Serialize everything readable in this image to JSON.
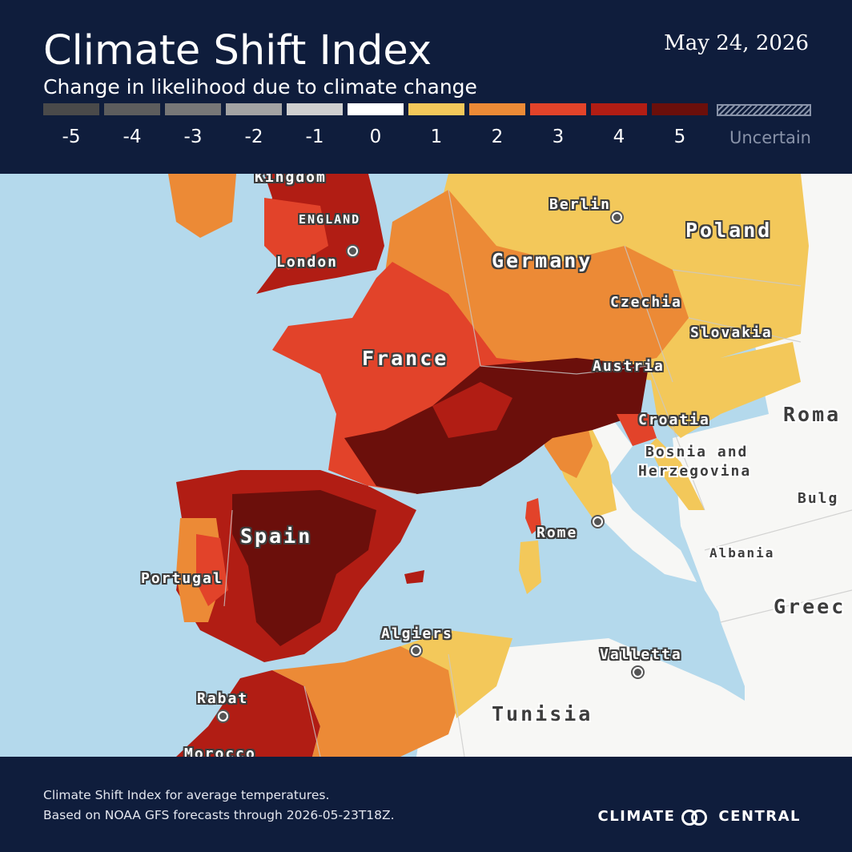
{
  "header": {
    "title": "Climate Shift Index",
    "subtitle": "Change in likelihood due to climate change",
    "date": "May 24, 2026"
  },
  "legend": {
    "items": [
      {
        "label": "-5",
        "color": "#4a4a4a"
      },
      {
        "label": "-4",
        "color": "#5d5d5d"
      },
      {
        "label": "-3",
        "color": "#777777"
      },
      {
        "label": "-2",
        "color": "#a3a3a3"
      },
      {
        "label": "-1",
        "color": "#cfcfcf"
      },
      {
        "label": "0",
        "color": "#ffffff"
      },
      {
        "label": "1",
        "color": "#f3c85a"
      },
      {
        "label": "2",
        "color": "#ec8a36"
      },
      {
        "label": "3",
        "color": "#e2432a"
      },
      {
        "label": "4",
        "color": "#b11d14"
      },
      {
        "label": "5",
        "color": "#6b0f0b"
      }
    ],
    "uncertain_label": "Uncertain"
  },
  "map": {
    "labels": {
      "kingdom": "Kingdom",
      "england": "ENGLAND",
      "london": "London",
      "berlin": "Berlin",
      "poland": "Poland",
      "germany": "Germany",
      "czechia": "Czechia",
      "slovakia": "Slovakia",
      "france": "France",
      "austria": "Austria",
      "croatia": "Croatia",
      "bosnia1": "Bosnia and",
      "bosnia2": "Herzegovina",
      "romania": "Roma",
      "bulgaria": "Bulg",
      "spain": "Spain",
      "portugal": "Portugal",
      "rome": "Rome",
      "albania": "Albania",
      "greece": "Greec",
      "algiers": "Algiers",
      "valletta": "Valletta",
      "rabat": "Rabat",
      "tunisia": "Tunisia",
      "morocco": "Morocco"
    }
  },
  "footer": {
    "line1": "Climate Shift Index for average temperatures.",
    "line2": "Based on NOAA GFS forecasts through 2026-05-23T18Z.",
    "brand_left": "CLIMATE",
    "brand_right": "CENTRAL"
  }
}
